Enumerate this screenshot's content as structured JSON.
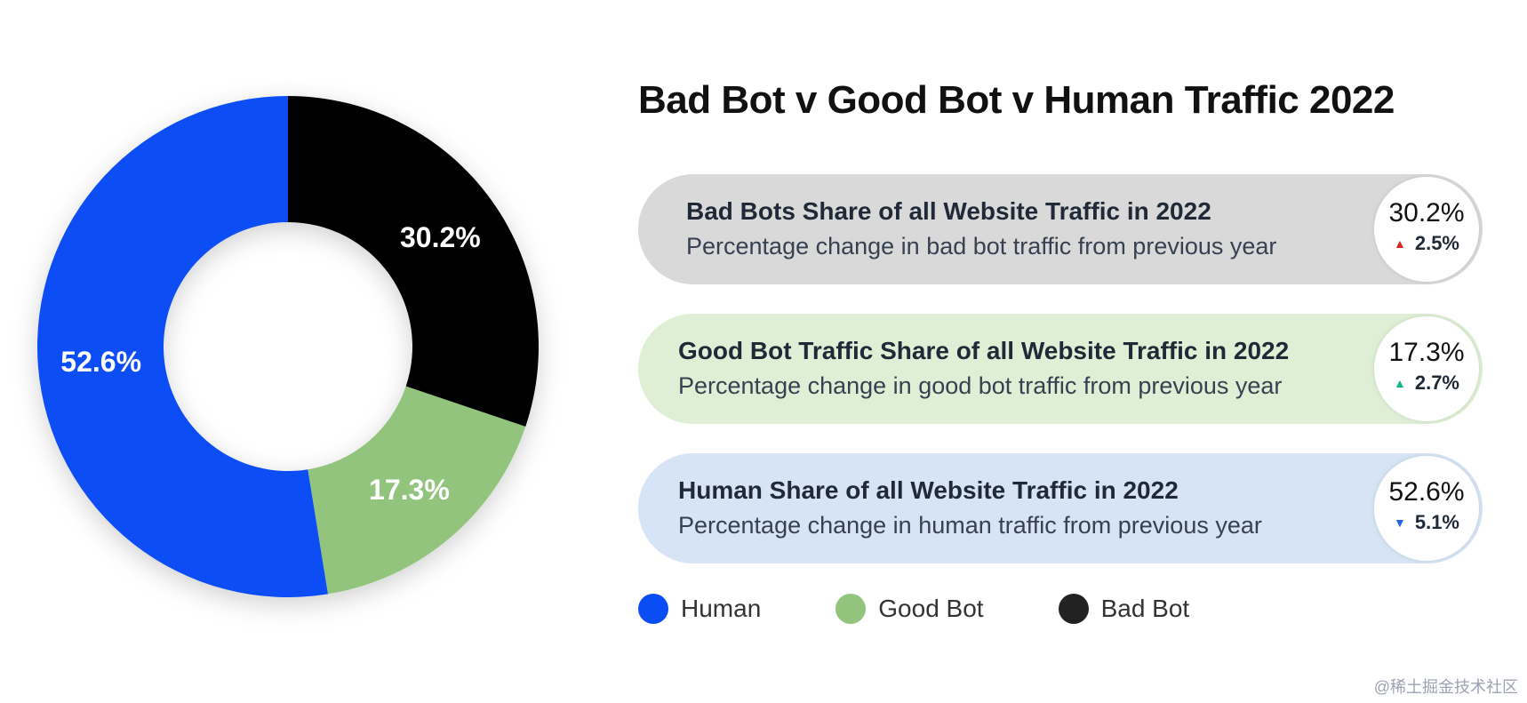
{
  "chart_data": {
    "type": "pie",
    "title": "Bad Bot v Good Bot v Human Traffic 2022",
    "donut": true,
    "slices": [
      {
        "name": "Bad Bot",
        "value": 30.2,
        "label": "30.2%",
        "color": "#000000"
      },
      {
        "name": "Good Bot",
        "value": 17.3,
        "label": "17.3%",
        "color": "#93c47d"
      },
      {
        "name": "Human",
        "value": 52.6,
        "label": "52.6%",
        "color": "#0b4df5"
      }
    ],
    "legend": [
      {
        "name": "Human",
        "color": "#0b4df5"
      },
      {
        "name": "Good Bot",
        "color": "#93c47d"
      },
      {
        "name": "Bad Bot",
        "color": "#222222"
      }
    ],
    "legend_position": "bottom-right"
  },
  "cards": [
    {
      "heading": "Bad Bots Share of all Website Traffic in 2022",
      "sub": "Percentage change in bad bot traffic from previous year",
      "value": "30.2%",
      "change": "2.5%",
      "direction": "up",
      "arrow_color": "#dc2626",
      "bg_color": "#d9d9d9"
    },
    {
      "heading": "Good Bot Traffic Share of all Website Traffic in 2022",
      "sub": "Percentage change in good bot traffic from previous year",
      "value": "17.3%",
      "change": "2.7%",
      "direction": "up",
      "arrow_color": "#10b981",
      "bg_color": "#deefd5"
    },
    {
      "heading": "Human Share of all Website Traffic in 2022",
      "sub": "Percentage change in human traffic from previous year",
      "value": "52.6%",
      "change": "5.1%",
      "direction": "down",
      "arrow_color": "#2563eb",
      "bg_color": "#d6e4f5"
    }
  ],
  "watermark": "@稀土掘金技术社区"
}
